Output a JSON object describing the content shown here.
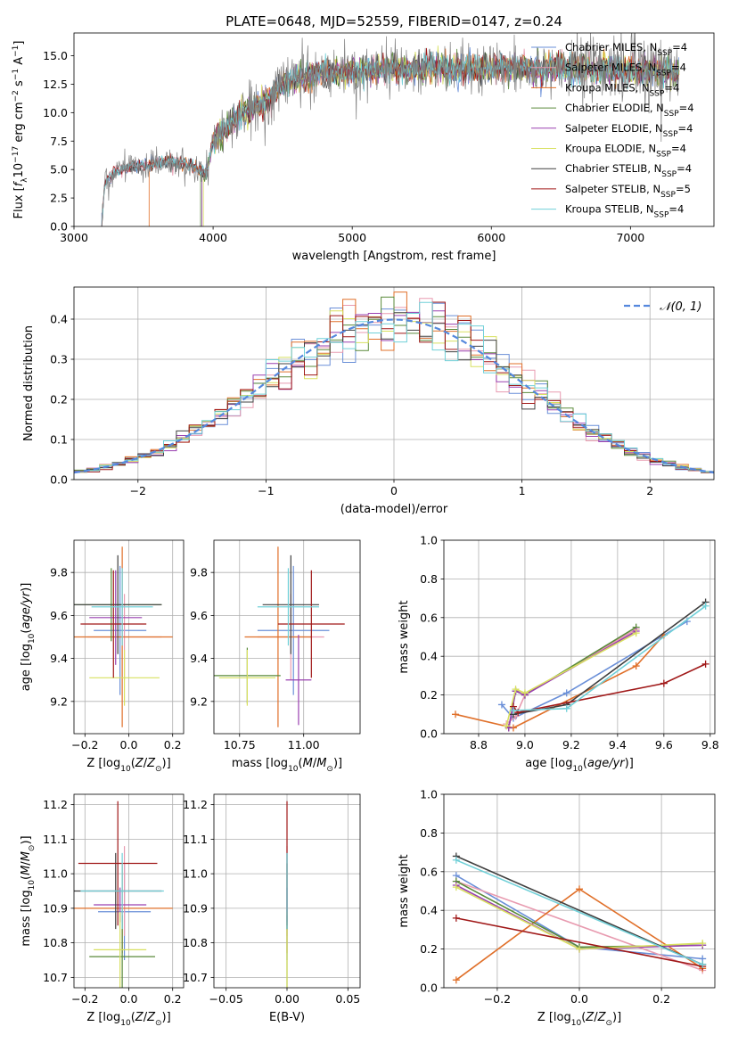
{
  "figure": {
    "title": "PLATE=0648, MJD=52559, FIBERID=0147, z=0.24",
    "model_colors": [
      "#6a8fd8",
      "#e89bb0",
      "#e0702a",
      "#5a8a3a",
      "#9a40b0",
      "#d8e060",
      "#404040",
      "#a01818",
      "#70d0d8"
    ]
  },
  "chart_data": [
    {
      "id": "spectrum",
      "type": "line",
      "title": "PLATE=0648, MJD=52559, FIBERID=0147, z=0.24",
      "xlabel": "wavelength [Angstrom, rest frame]",
      "ylabel": "Flux [f_λ 10^-17 erg cm^-2 s^-1 A^-1]",
      "xlim": [
        3000,
        7600
      ],
      "ylim": [
        0,
        17
      ],
      "xticks": [
        3000,
        4000,
        5000,
        6000,
        7000
      ],
      "yticks": [
        0.0,
        2.5,
        5.0,
        7.5,
        10.0,
        12.5,
        15.0
      ],
      "grid": false,
      "legend_position": "upper right",
      "legend": [
        {
          "prefix": "Chabrier MILES, N",
          "sub": "SSP",
          "suffix": "=4"
        },
        {
          "prefix": "Salpeter MILES, N",
          "sub": "SSP",
          "suffix": "=4"
        },
        {
          "prefix": "Kroupa MILES, N",
          "sub": "SSP",
          "suffix": "=4"
        },
        {
          "prefix": "Chabrier ELODIE, N",
          "sub": "SSP",
          "suffix": "=4"
        },
        {
          "prefix": "Salpeter ELODIE, N",
          "sub": "SSP",
          "suffix": "=4"
        },
        {
          "prefix": "Kroupa ELODIE, N",
          "sub": "SSP",
          "suffix": "=4"
        },
        {
          "prefix": "Chabrier STELIB, N",
          "sub": "SSP",
          "suffix": "=4"
        },
        {
          "prefix": "Salpeter STELIB, N",
          "sub": "SSP",
          "suffix": "=5"
        },
        {
          "prefix": "Kroupa STELIB, N",
          "sub": "SSP",
          "suffix": "=4"
        }
      ],
      "data_continuum": [
        [
          3200,
          0
        ],
        [
          3220,
          3.8
        ],
        [
          3300,
          4.8
        ],
        [
          3400,
          5.2
        ],
        [
          3500,
          5.3
        ],
        [
          3600,
          5.6
        ],
        [
          3700,
          5.7
        ],
        [
          3800,
          5.5
        ],
        [
          3900,
          5.0
        ],
        [
          3950,
          4.5
        ],
        [
          4000,
          7.5
        ],
        [
          4100,
          8.8
        ],
        [
          4200,
          9.8
        ],
        [
          4300,
          10.6
        ],
        [
          4400,
          11.2
        ],
        [
          4500,
          12.5
        ],
        [
          4600,
          13.0
        ],
        [
          4700,
          13.3
        ],
        [
          4800,
          13.5
        ],
        [
          4900,
          13.6
        ],
        [
          5000,
          13.6
        ],
        [
          5200,
          13.8
        ],
        [
          5400,
          13.8
        ],
        [
          5600,
          13.9
        ],
        [
          5800,
          13.9
        ],
        [
          6000,
          13.9
        ],
        [
          6200,
          14.0
        ],
        [
          6400,
          13.9
        ],
        [
          6600,
          13.9
        ],
        [
          6800,
          13.8
        ],
        [
          7000,
          13.7
        ],
        [
          7200,
          13.6
        ],
        [
          7350,
          13.5
        ]
      ],
      "model_starts": [
        3200,
        3200,
        3540,
        3910,
        3920,
        3930,
        3200,
        3200,
        3200
      ]
    },
    {
      "id": "residuals",
      "type": "histogram",
      "xlabel": "(data-model)/error",
      "ylabel": "Normed distribution",
      "xlim": [
        -2.5,
        2.5
      ],
      "ylim": [
        0,
        0.48
      ],
      "xticks": [
        -2,
        -1,
        0,
        1,
        2
      ],
      "yticks": [
        0.0,
        0.1,
        0.2,
        0.3,
        0.4
      ],
      "grid": true,
      "legend_position": "upper right",
      "legend": "𝒩(0, 1)",
      "bin_width": 0.1
    },
    {
      "id": "age-vs-z",
      "type": "errorbar",
      "xlabel": "Z [log10(Z/Z⊙)]",
      "ylabel": "age [log10(age/yr)]",
      "xlim": [
        -0.25,
        0.25
      ],
      "ylim": [
        9.05,
        9.95
      ],
      "xticks": [
        -0.2,
        0.0,
        0.2
      ],
      "xtick_labels": [
        "−0.2",
        "0.0",
        "0.2"
      ],
      "yticks": [
        9.2,
        9.4,
        9.6,
        9.8
      ],
      "grid": true,
      "points": [
        {
          "x": -0.04,
          "xe": 0.12,
          "y": 9.53,
          "ye": 0.3
        },
        {
          "x": -0.02,
          "xe": 0.17,
          "y": 9.5,
          "ye": 0.2
        },
        {
          "x": -0.03,
          "xe": 0.23,
          "y": 9.5,
          "ye": 0.42
        },
        {
          "x": -0.08,
          "xe": 0.23,
          "y": 9.65,
          "ye": 0.17
        },
        {
          "x": -0.06,
          "xe": 0.12,
          "y": 9.59,
          "ye": 0.22
        },
        {
          "x": -0.02,
          "xe": 0.16,
          "y": 9.31,
          "ye": 0.13
        },
        {
          "x": -0.05,
          "xe": 0.2,
          "y": 9.65,
          "ye": 0.23
        },
        {
          "x": -0.07,
          "xe": 0.15,
          "y": 9.56,
          "ye": 0.25
        },
        {
          "x": -0.03,
          "xe": 0.14,
          "y": 9.64,
          "ye": 0.18
        }
      ]
    },
    {
      "id": "age-vs-mass",
      "type": "errorbar",
      "xlabel": "mass [log10(M/M⊙)]",
      "xlim": [
        10.65,
        11.22
      ],
      "ylim": [
        9.05,
        9.95
      ],
      "xticks": [
        10.75,
        11.0
      ],
      "xtick_labels": [
        "10.75",
        "11.00"
      ],
      "yticks": [
        9.2,
        9.4,
        9.6,
        9.8
      ],
      "grid": true,
      "points": [
        {
          "x": 10.96,
          "xe": 0.14,
          "y": 9.53,
          "ye": 0.3
        },
        {
          "x": 10.95,
          "xe": 0.13,
          "y": 9.5,
          "ye": 0.2
        },
        {
          "x": 10.9,
          "xe": 0.13,
          "y": 9.5,
          "ye": 0.42
        },
        {
          "x": 10.78,
          "xe": 0.13,
          "y": 9.32,
          "ye": 0.13
        },
        {
          "x": 10.98,
          "xe": 0.05,
          "y": 9.3,
          "ye": 0.21
        },
        {
          "x": 10.78,
          "xe": 0.11,
          "y": 9.31,
          "ye": 0.13
        },
        {
          "x": 10.95,
          "xe": 0.11,
          "y": 9.65,
          "ye": 0.23
        },
        {
          "x": 11.03,
          "xe": 0.13,
          "y": 9.56,
          "ye": 0.25
        },
        {
          "x": 10.94,
          "xe": 0.12,
          "y": 9.64,
          "ye": 0.18
        }
      ]
    },
    {
      "id": "weight-vs-age",
      "type": "line",
      "xlabel": "age [log10(age/yr)]",
      "ylabel": "mass weight",
      "xlim": [
        8.65,
        9.82
      ],
      "ylim": [
        0,
        1
      ],
      "xticks": [
        8.8,
        9.0,
        9.2,
        9.4,
        9.6,
        9.8
      ],
      "xtick_labels": [
        "8.8",
        "9.0",
        "9.2",
        "9.4",
        "9.6",
        "9.8"
      ],
      "yticks": [
        0.0,
        0.2,
        0.4,
        0.6,
        0.8,
        1.0
      ],
      "grid": true,
      "series": [
        {
          "x": [
            8.9,
            8.95,
            9.18,
            9.7
          ],
          "y": [
            0.15,
            0.08,
            0.21,
            0.58
          ]
        },
        {
          "x": [
            8.92,
            8.96,
            9.0,
            9.48
          ],
          "y": [
            0.05,
            0.09,
            0.2,
            0.54
          ]
        },
        {
          "x": [
            8.7,
            8.95,
            9.48,
            9.6
          ],
          "y": [
            0.1,
            0.03,
            0.35,
            0.51
          ]
        },
        {
          "x": [
            8.93,
            8.96,
            9.0,
            9.48
          ],
          "y": [
            0.03,
            0.22,
            0.2,
            0.55
          ]
        },
        {
          "x": [
            8.93,
            8.96,
            9.0,
            9.48
          ],
          "y": [
            0.03,
            0.22,
            0.2,
            0.53
          ]
        },
        {
          "x": [
            8.92,
            8.96,
            9.0,
            9.48
          ],
          "y": [
            0.04,
            0.23,
            0.21,
            0.52
          ]
        },
        {
          "x": [
            8.95,
            9.18,
            9.78
          ],
          "y": [
            0.1,
            0.15,
            0.68
          ]
        },
        {
          "x": [
            8.95,
            8.97,
            9.6,
            9.78
          ],
          "y": [
            0.14,
            0.11,
            0.26,
            0.36
          ]
        },
        {
          "x": [
            8.95,
            9.18,
            9.78
          ],
          "y": [
            0.12,
            0.13,
            0.66
          ]
        }
      ]
    },
    {
      "id": "mass-vs-z",
      "type": "errorbar",
      "xlabel": "Z [log10(Z/Z⊙)]",
      "ylabel": "mass [log10(M/M⊙)]",
      "xlim": [
        -0.25,
        0.25
      ],
      "ylim": [
        10.67,
        11.23
      ],
      "xticks": [
        -0.2,
        0.0,
        0.2
      ],
      "xtick_labels": [
        "−0.2",
        "0.0",
        "0.2"
      ],
      "yticks": [
        10.7,
        10.8,
        10.9,
        11.0,
        11.1,
        11.2
      ],
      "grid": true,
      "points": [
        {
          "x": -0.02,
          "xe": 0.12,
          "y": 10.89,
          "ye": 0.14
        },
        {
          "x": -0.02,
          "xe": 0.17,
          "y": 10.95,
          "ye": 0.13
        },
        {
          "x": -0.03,
          "xe": 0.23,
          "y": 10.9,
          "ye": 0.13
        },
        {
          "x": -0.03,
          "xe": 0.15,
          "y": 10.76,
          "ye": 0.12
        },
        {
          "x": -0.04,
          "xe": 0.12,
          "y": 10.91,
          "ye": 0.05
        },
        {
          "x": -0.04,
          "xe": 0.12,
          "y": 10.78,
          "ye": 0.11
        },
        {
          "x": -0.06,
          "xe": 0.21,
          "y": 10.95,
          "ye": 0.11
        },
        {
          "x": -0.05,
          "xe": 0.18,
          "y": 11.03,
          "ye": 0.18
        },
        {
          "x": -0.03,
          "xe": 0.19,
          "y": 10.95,
          "ye": 0.11
        }
      ]
    },
    {
      "id": "mass-vs-ebv",
      "type": "errorbar",
      "xlabel": "E(B-V)",
      "xlim": [
        -0.06,
        0.06
      ],
      "ylim": [
        10.67,
        11.23
      ],
      "xticks": [
        -0.05,
        0.0,
        0.05
      ],
      "xtick_labels": [
        "−0.05",
        "0.00",
        "0.05"
      ],
      "yticks": [
        10.7,
        10.8,
        10.9,
        11.0,
        11.1,
        11.2
      ],
      "grid": true,
      "points": [
        {
          "x": 0,
          "xe": 0,
          "y": 10.89,
          "ye": 0.14
        },
        {
          "x": 0,
          "xe": 0,
          "y": 10.95,
          "ye": 0.13
        },
        {
          "x": 0,
          "xe": 0,
          "y": 10.9,
          "ye": 0.13
        },
        {
          "x": 0,
          "xe": 0,
          "y": 10.76,
          "ye": 0.12
        },
        {
          "x": 0,
          "xe": 0,
          "y": 10.91,
          "ye": 0.05
        },
        {
          "x": 0,
          "xe": 0,
          "y": 10.78,
          "ye": 0.11
        },
        {
          "x": 0,
          "xe": 0,
          "y": 10.95,
          "ye": 0.11
        },
        {
          "x": 0,
          "xe": 0,
          "y": 11.03,
          "ye": 0.18
        },
        {
          "x": 0,
          "xe": 0,
          "y": 10.95,
          "ye": 0.11
        }
      ]
    },
    {
      "id": "weight-vs-z",
      "type": "line",
      "xlabel": "Z [log10(Z/Z⊙)]",
      "ylabel": "mass weight",
      "xlim": [
        -0.33,
        0.33
      ],
      "ylim": [
        0,
        1
      ],
      "xticks": [
        -0.2,
        0.0,
        0.2
      ],
      "xtick_labels": [
        "−0.2",
        "0.0",
        "0.2"
      ],
      "yticks": [
        0.0,
        0.2,
        0.4,
        0.6,
        0.8,
        1.0
      ],
      "grid": true,
      "series": [
        {
          "x": [
            -0.3,
            0.0,
            0.3
          ],
          "y": [
            0.58,
            0.21,
            0.15
          ]
        },
        {
          "x": [
            -0.3,
            0.3
          ],
          "y": [
            0.55,
            0.09
          ]
        },
        {
          "x": [
            -0.3,
            0.0,
            0.3
          ],
          "y": [
            0.04,
            0.51,
            0.1
          ]
        },
        {
          "x": [
            -0.3,
            0.0,
            0.3
          ],
          "y": [
            0.55,
            0.21,
            0.22
          ]
        },
        {
          "x": [
            -0.3,
            0.0,
            0.3
          ],
          "y": [
            0.53,
            0.2,
            0.22
          ]
        },
        {
          "x": [
            -0.3,
            0.0,
            0.3
          ],
          "y": [
            0.52,
            0.2,
            0.23
          ]
        },
        {
          "x": [
            -0.3,
            0.3
          ],
          "y": [
            0.68,
            0.12
          ]
        },
        {
          "x": [
            -0.3,
            0.3
          ],
          "y": [
            0.36,
            0.11
          ]
        },
        {
          "x": [
            -0.3,
            0.3
          ],
          "y": [
            0.66,
            0.12
          ]
        }
      ]
    }
  ]
}
